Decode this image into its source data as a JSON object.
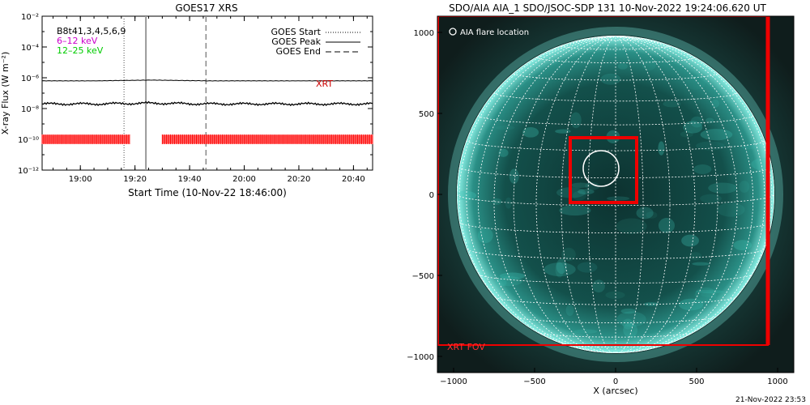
{
  "chart_data": [
    {
      "type": "line",
      "title": "GOES17 XRS",
      "xlabel": "Start Time (10-Nov-22 18:46:00)",
      "ylabel": "X-ray Flux (W m⁻²)",
      "y_scale": "log",
      "ylim_exponents": [
        -12,
        -2
      ],
      "y_ticks": [
        {
          "exp": -12,
          "label": "10⁻¹²"
        },
        {
          "exp": -10,
          "label": "10⁻¹⁰"
        },
        {
          "exp": -8,
          "label": "10⁻⁸"
        },
        {
          "exp": -6,
          "label": "10⁻⁶"
        },
        {
          "exp": -4,
          "label": "10⁻⁴"
        },
        {
          "exp": -2,
          "label": "10⁻²"
        }
      ],
      "x_ticks": [
        "19:00",
        "19:20",
        "19:40",
        "20:00",
        "20:20",
        "20:40"
      ],
      "xlim_minutes": [
        0,
        121
      ],
      "x_tick_minutes": [
        14,
        34,
        54,
        74,
        94,
        114
      ],
      "legend_left": [
        {
          "text": "B8t41,3,4,5,6,9",
          "color": "#000000"
        },
        {
          "text": "6–12 keV",
          "color": "#cc00cc"
        },
        {
          "text": "12–25 keV",
          "color": "#00cc00"
        }
      ],
      "legend_right": [
        {
          "text": "GOES Start",
          "style": "dotted"
        },
        {
          "text": "GOES Peak",
          "style": "solid"
        },
        {
          "text": "GOES End",
          "style": "dashed"
        }
      ],
      "series": [
        {
          "name": "GOES long channel",
          "x_minutes": [
            0,
            20,
            40,
            60,
            80,
            100,
            121
          ],
          "log10_flux": [
            -6.2,
            -6.2,
            -6.15,
            -6.2,
            -6.2,
            -6.2,
            -6.2
          ]
        },
        {
          "name": "GOES short channel",
          "x_minutes": [
            0,
            20,
            40,
            60,
            80,
            100,
            121
          ],
          "log10_flux": [
            -7.7,
            -7.7,
            -7.65,
            -7.7,
            -7.7,
            -7.7,
            -7.7
          ]
        }
      ],
      "vertical_lines": [
        {
          "label": "GOES Start",
          "x_minutes": 30,
          "style": "dotted"
        },
        {
          "label": "GOES Peak",
          "x_minutes": 38,
          "style": "solid"
        },
        {
          "label": "GOES End",
          "x_minutes": 60,
          "style": "dashed"
        }
      ],
      "xrt_label": "XRT",
      "xrt_intervals_minutes": [
        [
          0,
          32
        ],
        [
          44,
          121
        ]
      ],
      "xrt_log10_level": -10,
      "xrt_color": "#ff0000"
    },
    {
      "type": "image",
      "title": "SDO/AIA AIA_1 SDO/JSOC-SDP 131 10-Nov-2022 19:24:06.620 UT",
      "xlabel": "X (arcsec)",
      "ylabel": "",
      "xlim": [
        -1100,
        1100
      ],
      "ylim": [
        -1100,
        1100
      ],
      "x_ticks": [
        -1000,
        -500,
        0,
        500,
        1000
      ],
      "y_ticks": [
        -1000,
        -500,
        0,
        500,
        1000
      ],
      "sun_radius_arcsec": 980,
      "legend": [
        {
          "text": "AIA flare location",
          "symbol": "circle",
          "color": "#ffffff"
        }
      ],
      "xrt_fov_label": "XRT FOV",
      "xrt_fov_arcsec": {
        "x0": -1100,
        "x1": 940,
        "y0": -930,
        "y1": 1100
      },
      "aia_box_arcsec": {
        "x0": -280,
        "x1": 130,
        "y0": -50,
        "y1": 350
      },
      "flare_circle_arcsec": {
        "cx": -90,
        "cy": 160,
        "r": 110
      },
      "colors": {
        "sun_core": "#0a3a38",
        "sun_limb": "#7ff0e4",
        "background": "#1a2422",
        "box": "#ff0000",
        "grid": "#ffffff"
      }
    }
  ],
  "timestamp": "21-Nov-2022 23:53"
}
